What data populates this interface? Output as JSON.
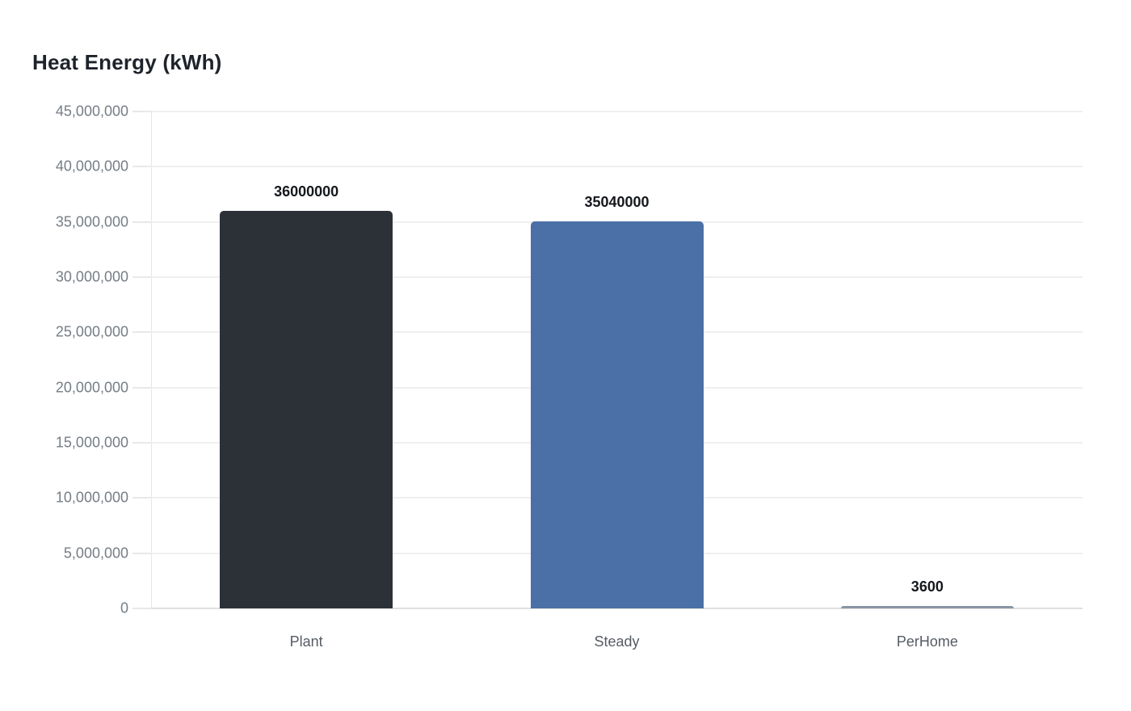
{
  "title": "Heat Energy (kWh)",
  "chart_data": {
    "type": "bar",
    "title": "Heat Energy (kWh)",
    "categories": [
      "Plant",
      "Steady",
      "PerHome"
    ],
    "values": [
      36000000,
      35040000,
      3600
    ],
    "value_labels": [
      "36000000",
      "35040000",
      "3600"
    ],
    "xlabel": "",
    "ylabel": "",
    "ylim": [
      0,
      45000000
    ],
    "ytick_step": 5000000,
    "ytick_values": [
      0,
      5000000,
      10000000,
      15000000,
      20000000,
      25000000,
      30000000,
      35000000,
      40000000,
      45000000
    ],
    "ytick_labels": [
      "0",
      "5,000,000",
      "10,000,000",
      "15,000,000",
      "20,000,000",
      "25,000,000",
      "30,000,000",
      "35,000,000",
      "40,000,000",
      "45,000,000"
    ],
    "grid": true,
    "legend": false,
    "bar_colors": [
      "#2b3137",
      "#4b70a7",
      "#8a96a6"
    ]
  },
  "colors": {
    "background": "#ffffff",
    "title_text": "#1e232b",
    "value_label_text": "#15181c",
    "ytick_text": "#767d85",
    "xtick_text": "#565c64",
    "gridline": "#efefef",
    "baseline": "#e0e0e0",
    "axis_line": "#e6e6e6"
  }
}
